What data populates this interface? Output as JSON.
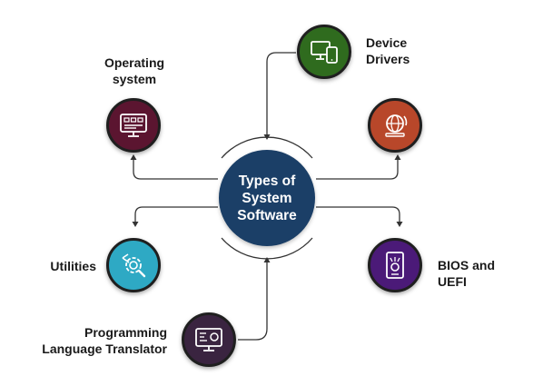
{
  "center": {
    "title": "Types of\nSystem\nSoftware",
    "color": "#1b3f67"
  },
  "nodes": [
    {
      "id": "operating-system",
      "label": "Operating\nsystem",
      "color": "#5b1530",
      "icon": "monitor-dashboard-icon"
    },
    {
      "id": "device-drivers",
      "label": "Device\nDrivers",
      "color": "#2f6b1e",
      "icon": "devices-icon"
    },
    {
      "id": "firmware",
      "label": "",
      "color": "#b8472a",
      "icon": "globe-gear-icon"
    },
    {
      "id": "utilities",
      "label": "Utilities",
      "color": "#2ea9c4",
      "icon": "gear-wrench-icon"
    },
    {
      "id": "bios-uefi",
      "label": "BIOS and\nUEFI",
      "color": "#4b1a78",
      "icon": "chip-phone-icon"
    },
    {
      "id": "programming-language-translator",
      "label": "Programming\nLanguage Translator",
      "color": "#3a2440",
      "icon": "code-monitor-icon"
    }
  ],
  "connector_color": "#333333"
}
